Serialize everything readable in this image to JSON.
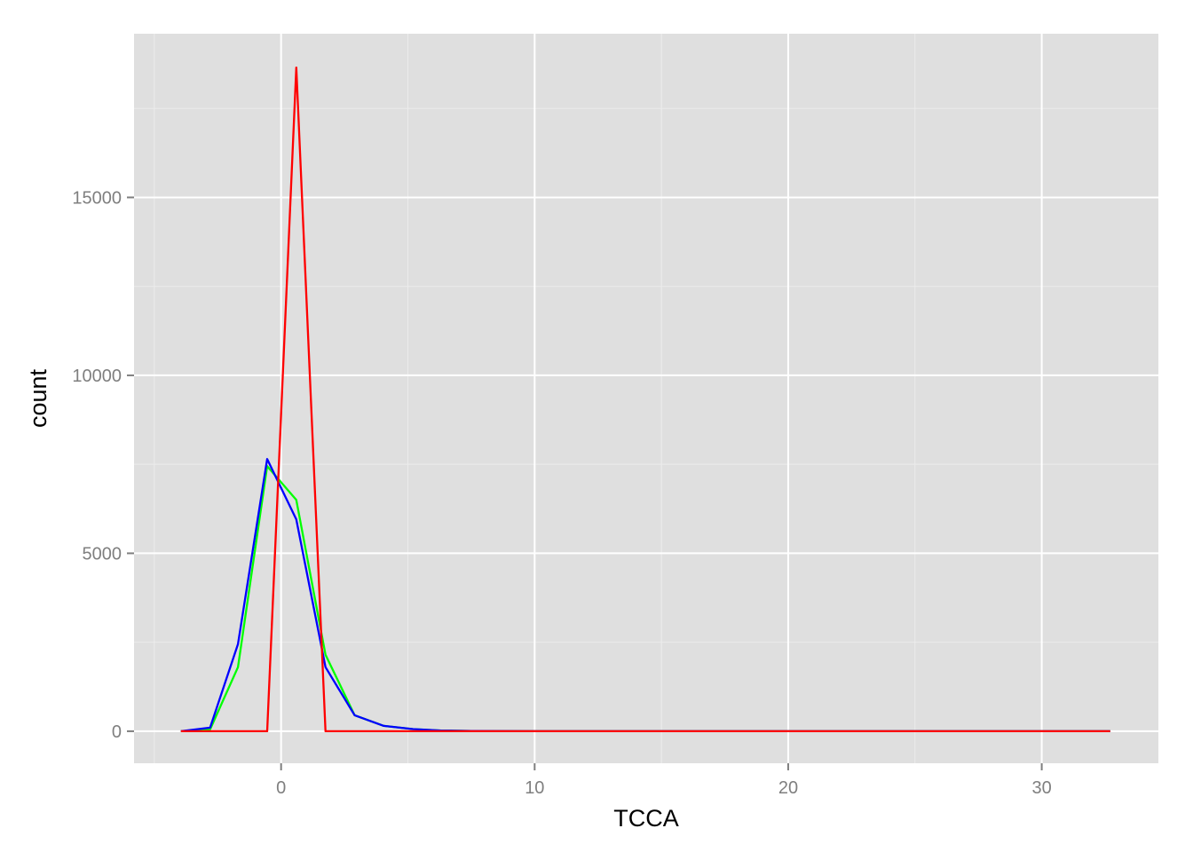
{
  "chart_data": {
    "type": "line",
    "title": "",
    "xlabel": "TCCA",
    "ylabel": "count",
    "xlim": [
      -5.8,
      34.6
    ],
    "ylim": [
      -900,
      19600
    ],
    "x_ticks": [
      0,
      10,
      20,
      30
    ],
    "x_tick_labels": [
      "0",
      "10",
      "20",
      "30"
    ],
    "x_minor": [
      -5,
      5,
      15,
      25
    ],
    "y_ticks": [
      0,
      5000,
      10000,
      15000
    ],
    "y_tick_labels": [
      "0",
      "5000",
      "10000",
      "15000"
    ],
    "y_minor": [
      2500,
      7500,
      12500,
      17500
    ],
    "grid": true,
    "legend": "none",
    "colors": {
      "panel_bg": "#dfdfdf",
      "grid_major": "#ffffff",
      "grid_minor": "#ececec"
    },
    "x": [
      -3.95,
      -2.8,
      -1.7,
      -0.55,
      0.6,
      1.75,
      2.9,
      4.05,
      5.2,
      6.3,
      7.5,
      10,
      15,
      20,
      25,
      30,
      32.7
    ],
    "series": [
      {
        "color": "#00ff00",
        "values": [
          0,
          50,
          1800,
          7450,
          6500,
          2150,
          450,
          150,
          60,
          20,
          5,
          0,
          0,
          0,
          0,
          0,
          0
        ]
      },
      {
        "color": "#0000ff",
        "values": [
          0,
          100,
          2450,
          7650,
          5950,
          1800,
          450,
          150,
          60,
          20,
          5,
          0,
          0,
          0,
          0,
          0,
          0
        ]
      },
      {
        "color": "#ff0000",
        "values": [
          0,
          0,
          0,
          0,
          18650,
          0,
          0,
          0,
          0,
          0,
          0,
          0,
          0,
          0,
          0,
          0,
          0
        ]
      }
    ]
  }
}
